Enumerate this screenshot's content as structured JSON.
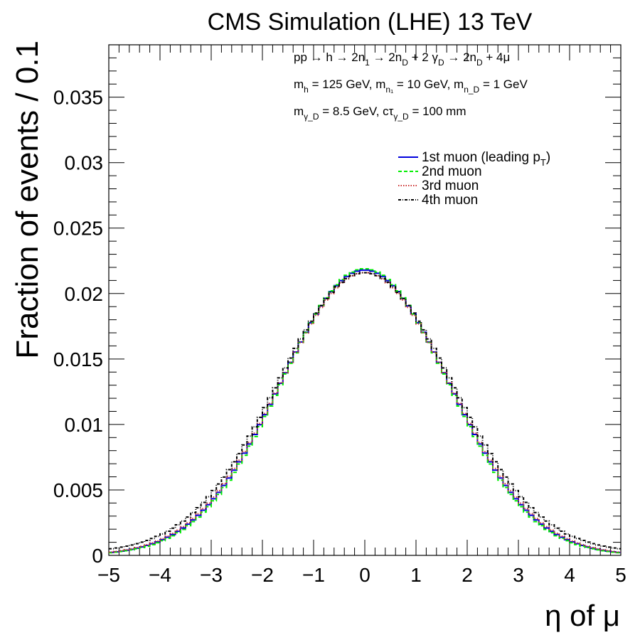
{
  "header": {
    "title": "CMS Simulation (LHE) 13 TeV"
  },
  "annotations": [
    {
      "main": "pp → h → 2n",
      "sub": "1",
      "rest": " → 2n",
      "sub2": "D",
      "rest2": " + 2 γ",
      "sub3": "D",
      "rest3": " → 2n",
      "sub4": "D",
      "rest4": " + 4μ"
    },
    {
      "main": "m",
      "sub": "h",
      "rest": " = 125 GeV, m",
      "sub2": "n₁",
      "rest2": " = 10  GeV, m",
      "sub3": "n_D",
      "rest3": " = 1 GeV",
      "sub4": "",
      "rest4": ""
    },
    {
      "main": "m",
      "sub": "γ_D",
      "rest": " = 8.5 GeV, cτ",
      "sub2": "γ_D",
      "rest2": " = 100 mm",
      "sub3": "",
      "rest3": "",
      "sub4": "",
      "rest4": ""
    }
  ],
  "chart_data": {
    "type": "line",
    "title": "CMS Simulation (LHE) 13 TeV",
    "xlabel": "η of μ",
    "ylabel": "Fraction of events / 0.1",
    "xlim": [
      -5,
      5
    ],
    "ylim": [
      0,
      0.039
    ],
    "bin_width": 0.1,
    "x_ticks": [
      -5,
      -4,
      -3,
      -2,
      -1,
      0,
      1,
      2,
      3,
      4,
      5
    ],
    "y_ticks": [
      0,
      0.005,
      0.01,
      0.015,
      0.02,
      0.025,
      0.03,
      0.035
    ],
    "y_tick_labels": [
      "0",
      "0.005",
      "0.01",
      "0.015",
      "0.02",
      "0.025",
      "0.03",
      "0.035"
    ],
    "legend_position": "top-right",
    "grid": false,
    "series": [
      {
        "name": "1st muon (leading p",
        "name_sub": "T",
        "name_suffix": ")",
        "color": "#0000dd",
        "dash": "",
        "amplitude": 0.0218,
        "sigma": 1.64,
        "floor": 0.0
      },
      {
        "name": "2nd muon",
        "name_sub": "",
        "name_suffix": "",
        "color": "#00ee00",
        "dash": "5,3",
        "amplitude": 0.0219,
        "sigma": 1.62,
        "floor": 0.0
      },
      {
        "name": "3rd muon",
        "name_sub": "",
        "name_suffix": "",
        "color": "#cc3333",
        "dash": "1.5,2",
        "amplitude": 0.0216,
        "sigma": 1.66,
        "floor": 0.0
      },
      {
        "name": "4th muon",
        "name_sub": "",
        "name_suffix": "",
        "color": "#000000",
        "dash": "4,2,1,2",
        "amplitude": 0.0214,
        "sigma": 1.7,
        "floor": 0.0002
      }
    ]
  }
}
